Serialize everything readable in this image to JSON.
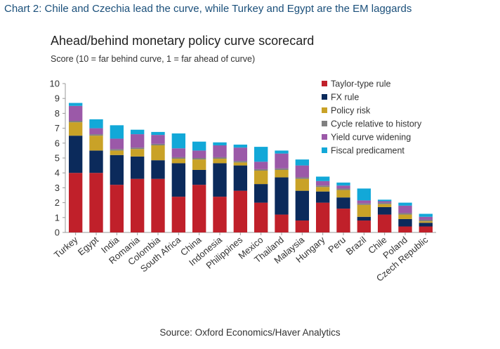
{
  "header": "Chart 2: Chile and Czechia lead the curve, while Turkey and Egypt are the EM laggards",
  "source": "Source: Oxford Economics/Haver Analytics",
  "chart_data": {
    "type": "bar",
    "stacked": true,
    "title": "Ahead/behind monetary policy curve scorecard",
    "subtitle": "Score (10 = far behind curve, 1 =  far ahead of curve)",
    "xlabel": "",
    "ylabel": "",
    "ylim": [
      0,
      10
    ],
    "yticks": [
      0,
      1,
      2,
      3,
      4,
      5,
      6,
      7,
      8,
      9,
      10
    ],
    "grid": false,
    "legend_position": "top-right",
    "categories": [
      "Turkey",
      "Egypt",
      "India",
      "Romania",
      "Colombia",
      "South Africa",
      "China",
      "Indonesia",
      "Philippines",
      "Mexico",
      "Thailand",
      "Malaysia",
      "Hungary",
      "Peru",
      "Brazil",
      "Chile",
      "Poland",
      "Czech Republic"
    ],
    "series": [
      {
        "name": "Taylor-type rule",
        "color": "#c0202a",
        "values": [
          4.0,
          4.0,
          3.2,
          3.6,
          3.6,
          2.4,
          3.2,
          2.4,
          2.8,
          2.0,
          1.2,
          0.8,
          2.0,
          1.6,
          0.8,
          1.2,
          0.4,
          0.4
        ]
      },
      {
        "name": "FX rule",
        "color": "#0b2a5b",
        "values": [
          2.5,
          1.5,
          2.0,
          1.5,
          1.25,
          2.25,
          1.0,
          2.25,
          1.7,
          1.25,
          2.5,
          2.0,
          0.75,
          0.75,
          0.25,
          0.5,
          0.5,
          0.25
        ]
      },
      {
        "name": "Policy risk",
        "color": "#c9a227",
        "values": [
          0.9,
          1.0,
          0.3,
          0.5,
          1.0,
          0.3,
          0.7,
          0.3,
          0.2,
          0.9,
          0.5,
          0.8,
          0.3,
          0.5,
          0.8,
          0.2,
          0.3,
          0.1
        ]
      },
      {
        "name": "Cycle relative to history",
        "color": "#808080",
        "values": [
          0.1,
          0.1,
          0.1,
          0.1,
          0.1,
          0.1,
          0.1,
          0.1,
          0.1,
          0.1,
          0.1,
          0.1,
          0.1,
          0.1,
          0.1,
          0.1,
          0.1,
          0.1
        ]
      },
      {
        "name": "Yield curve widening",
        "color": "#9b59a8",
        "values": [
          1.0,
          0.4,
          0.7,
          0.9,
          0.6,
          0.6,
          0.5,
          0.8,
          0.9,
          0.5,
          1.0,
          0.8,
          0.3,
          0.2,
          0.2,
          0.1,
          0.5,
          0.2
        ]
      },
      {
        "name": "Fiscal predicament",
        "color": "#12a8d8",
        "values": [
          0.2,
          0.6,
          0.9,
          0.3,
          0.2,
          1.0,
          0.6,
          0.2,
          0.2,
          1.0,
          0.2,
          0.4,
          0.3,
          0.2,
          0.8,
          0.1,
          0.2,
          0.2
        ]
      }
    ]
  }
}
